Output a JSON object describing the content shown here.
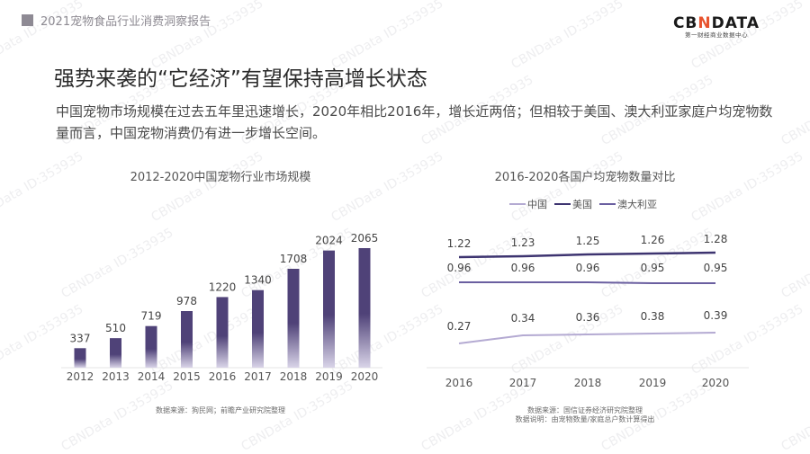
{
  "header": {
    "report_title": "2021宠物食品行业消费洞察报告",
    "logo_main_a": "CB",
    "logo_main_x": "N",
    "logo_main_b": "DATA",
    "logo_sub": "第一财经商业数据中心"
  },
  "slide": {
    "title": "强势来袭的“它经济”有望保持高增长状态",
    "description": "中国宠物市场规模在过去五年里迅速增长，2020年相比2016年，增长近两倍；但相较于美国、澳大利亚家庭户均宠物数量而言，中国宠物消费仍有进一步增长空间。"
  },
  "left_chart": {
    "source": "数据来源：狗民网；前瞻产业研究院整理"
  },
  "right_chart": {
    "source": "数据来源：国信证券经济研究院整理",
    "note": "数据说明：由宠物数量/家庭总户数计算得出"
  },
  "watermark_text": "CBNData ID:353935",
  "colors": {
    "bar": "#4f4278",
    "us_line": "#3d3470",
    "au_line": "#6a5fa0",
    "cn_line": "#b4aad2"
  },
  "chart_data": [
    {
      "type": "bar",
      "title": "2012-2020中国宠物行业市场规模",
      "categories": [
        "2012",
        "2013",
        "2014",
        "2015",
        "2016",
        "2017",
        "2018",
        "2019",
        "2020"
      ],
      "values": [
        337,
        510,
        719,
        978,
        1220,
        1340,
        1708,
        2024,
        2065
      ],
      "xlabel": "",
      "ylabel": "",
      "ylim": [
        0,
        2200
      ],
      "grid": false,
      "data_labels": true
    },
    {
      "type": "line",
      "title": "2016-2020各国户均宠物数量对比",
      "x": [
        "2016",
        "2017",
        "2018",
        "2019",
        "2020"
      ],
      "series": [
        {
          "name": "中国",
          "values": [
            0.27,
            0.34,
            0.36,
            0.38,
            0.39
          ]
        },
        {
          "name": "美国",
          "values": [
            1.22,
            1.23,
            1.25,
            1.26,
            1.28
          ]
        },
        {
          "name": "澳大利亚",
          "values": [
            0.96,
            0.96,
            0.96,
            0.95,
            0.95
          ]
        }
      ],
      "legend_position": "top",
      "grid": false,
      "data_labels": true,
      "ylim": [
        0,
        1.4
      ]
    }
  ]
}
